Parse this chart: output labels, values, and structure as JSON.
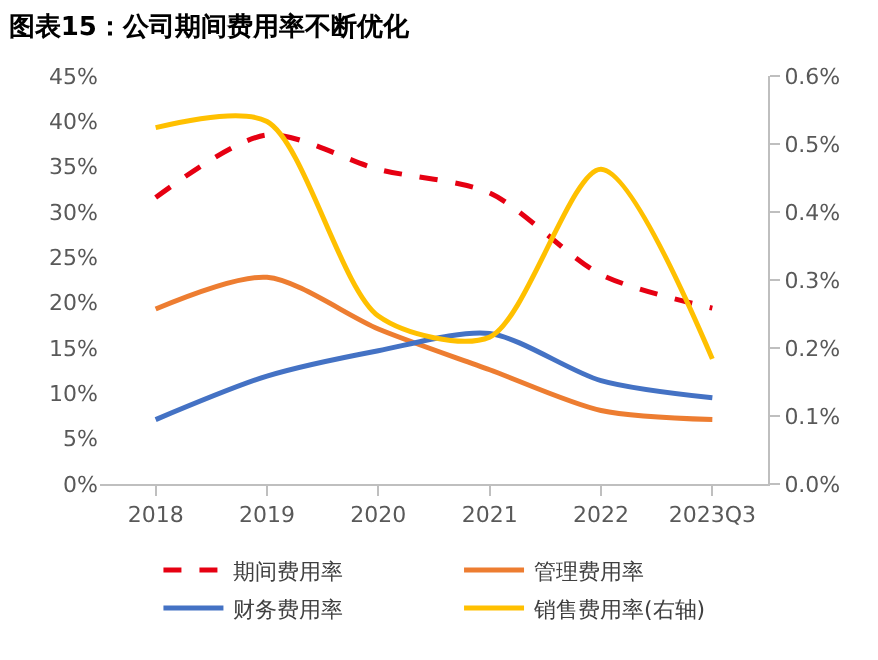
{
  "chart_data": {
    "type": "line",
    "title": "图表15：公司期间费用率不断优化",
    "categories": [
      "2018",
      "2019",
      "2020",
      "2021",
      "2022",
      "2023Q3"
    ],
    "series": [
      {
        "name": "期间费用率",
        "color": "#e60012",
        "line_style": "dashed",
        "values": [
          31.6,
          38.5,
          34.7,
          32.1,
          23.1,
          19.4
        ]
      },
      {
        "name": "管理费用率",
        "color": "#ed7d31",
        "values": [
          19.3,
          22.8,
          17.1,
          12.6,
          8.1,
          7.1
        ]
      },
      {
        "name": "财务费用率",
        "color": "#4472c4",
        "values": [
          7.1,
          11.9,
          14.7,
          16.6,
          11.4,
          9.5
        ]
      },
      {
        "name": "销售费用率(右轴)",
        "color": "#ffc000",
        "axis": "y2",
        "values": [
          0.524,
          0.533,
          0.247,
          0.216,
          0.463,
          0.184
        ]
      }
    ],
    "ylim": [
      0,
      45
    ],
    "yticks": [
      {
        "value": 0,
        "label": "0%"
      },
      {
        "value": 5,
        "label": "5%"
      },
      {
        "value": 10,
        "label": "10%"
      },
      {
        "value": 15,
        "label": "15%"
      },
      {
        "value": 20,
        "label": "20%"
      },
      {
        "value": 25,
        "label": "25%"
      },
      {
        "value": 30,
        "label": "30%"
      },
      {
        "value": 35,
        "label": "35%"
      },
      {
        "value": 40,
        "label": "40%"
      },
      {
        "value": 45,
        "label": "45%"
      }
    ],
    "y2lim": [
      0,
      0.6
    ],
    "y2ticks": [
      {
        "value": 0,
        "label": "0.0%"
      },
      {
        "value": 0.1,
        "label": "0.1%"
      },
      {
        "value": 0.2,
        "label": "0.2%"
      },
      {
        "value": 0.3,
        "label": "0.3%"
      },
      {
        "value": 0.4,
        "label": "0.4%"
      },
      {
        "value": 0.5,
        "label": "0.5%"
      },
      {
        "value": 0.6,
        "label": "0.6%"
      }
    ],
    "legend": "bottom",
    "marker": "none",
    "line_style": "solid"
  }
}
